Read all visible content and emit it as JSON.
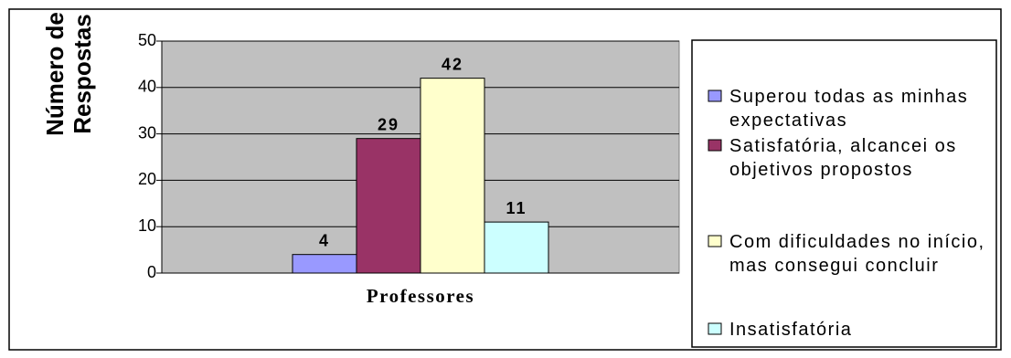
{
  "chart_data": {
    "type": "bar",
    "ylabel": "Número de Respostas",
    "categories": [
      "Professores"
    ],
    "series": [
      {
        "name": "Superou todas as minhas expectativas",
        "color": "#9999ff",
        "values": [
          4
        ]
      },
      {
        "name": "Satisfatória, alcancei os objetivos propostos",
        "color": "#993366",
        "values": [
          29
        ]
      },
      {
        "name": "Com dificuldades no início, mas consegui concluir",
        "color": "#ffffcc",
        "values": [
          42
        ]
      },
      {
        "name": "Insatisfatória",
        "color": "#ccffff",
        "values": [
          11
        ]
      }
    ],
    "ylim": [
      0,
      50
    ],
    "yticks": [
      0,
      10,
      20,
      30,
      40,
      50
    ],
    "grid": true,
    "legend": "right"
  }
}
